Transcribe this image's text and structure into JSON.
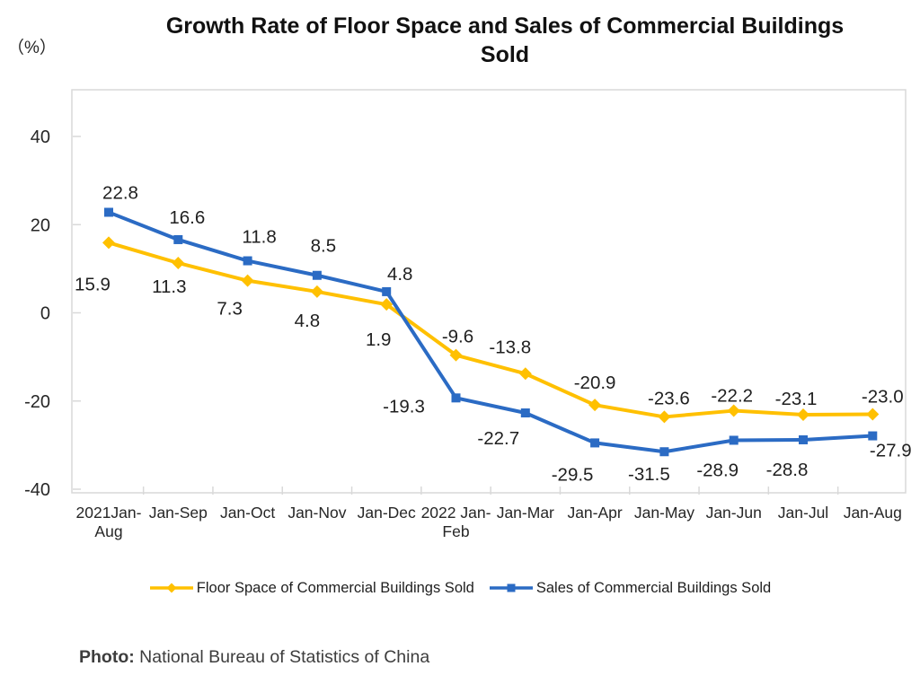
{
  "title_lines": [
    "Growth Rate of Floor Space and Sales of Commercial Buildings",
    "Sold"
  ],
  "footer": {
    "label": "Photo:",
    "text": "National Bureau of Statistics of China"
  },
  "chart_data": {
    "type": "line",
    "title": "Growth Rate of Floor Space and Sales of Commercial Buildings Sold",
    "ylabel": "（%）",
    "xlabel": "",
    "yticks": [
      40,
      20,
      0,
      -20,
      -40
    ],
    "ylim": [
      -41,
      51
    ],
    "grid": false,
    "legend_position": "bottom",
    "axis_color": "#d9d9d9",
    "text_color": "#1f1f1f",
    "tick_text_color": "#262626",
    "categories": [
      "2021Jan-\nAug",
      "Jan-Sep",
      "Jan-Oct",
      "Jan-Nov",
      "Jan-Dec",
      "2022 Jan-\nFeb",
      "Jan-Mar",
      "Jan-Apr",
      "Jan-May",
      "Jan-Jun",
      "Jan-Jul",
      "Jan-Aug"
    ],
    "series": [
      {
        "name": "Floor Space of Commercial Buildings Sold",
        "color": "#FFC000",
        "marker": "diamond",
        "values": [
          15.9,
          11.3,
          7.3,
          4.8,
          1.9,
          -9.6,
          -13.8,
          -20.9,
          -23.6,
          -22.2,
          -23.1,
          -23.0
        ],
        "labels": [
          "15.9",
          "11.3",
          "7.3",
          "4.8",
          "1.9",
          "-9.6",
          "-13.8",
          "-20.9",
          "-23.6",
          "-22.2",
          "-23.1",
          "-23.0"
        ]
      },
      {
        "name": "Sales of Commercial Buildings Sold",
        "color": "#2B6BC4",
        "marker": "square",
        "values": [
          22.8,
          16.6,
          11.8,
          8.5,
          4.8,
          -19.3,
          -22.7,
          -29.5,
          -31.5,
          -28.9,
          -28.8,
          -27.9
        ],
        "labels": [
          "22.8",
          "16.6",
          "11.8",
          "8.5",
          "4.8",
          "-19.3",
          "-22.7",
          "-29.5",
          "-31.5",
          "-28.9",
          "-28.8",
          "-27.9"
        ]
      }
    ]
  }
}
